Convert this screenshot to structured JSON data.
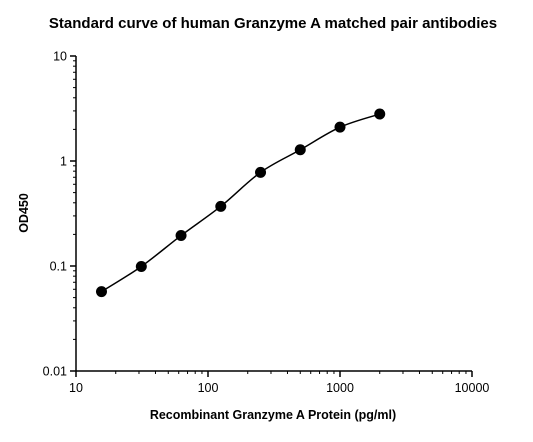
{
  "chart_data": {
    "type": "scatter",
    "title": "Standard curve of human Granzyme A matched pair antibodies",
    "xlabel": "Recombinant Granzyme A Protein (pg/ml)",
    "ylabel": "OD450",
    "x_scale": "log",
    "y_scale": "log",
    "xlim": [
      10,
      10000
    ],
    "ylim": [
      0.01,
      10
    ],
    "x_ticks": [
      10,
      100,
      1000,
      10000
    ],
    "x_tick_labels": [
      "10",
      "100",
      "1000",
      "10000"
    ],
    "y_ticks": [
      0.01,
      0.1,
      1,
      10
    ],
    "y_tick_labels": [
      "0.01",
      "0.1",
      "1",
      "10"
    ],
    "grid": false,
    "series": [
      {
        "x": [
          15.6,
          31.25,
          62.5,
          125,
          250,
          500,
          1000,
          2000
        ],
        "y": [
          0.057,
          0.099,
          0.195,
          0.37,
          0.78,
          1.28,
          2.1,
          2.8
        ],
        "marker": "circle",
        "fit_line": true,
        "color": "#000000"
      }
    ]
  }
}
